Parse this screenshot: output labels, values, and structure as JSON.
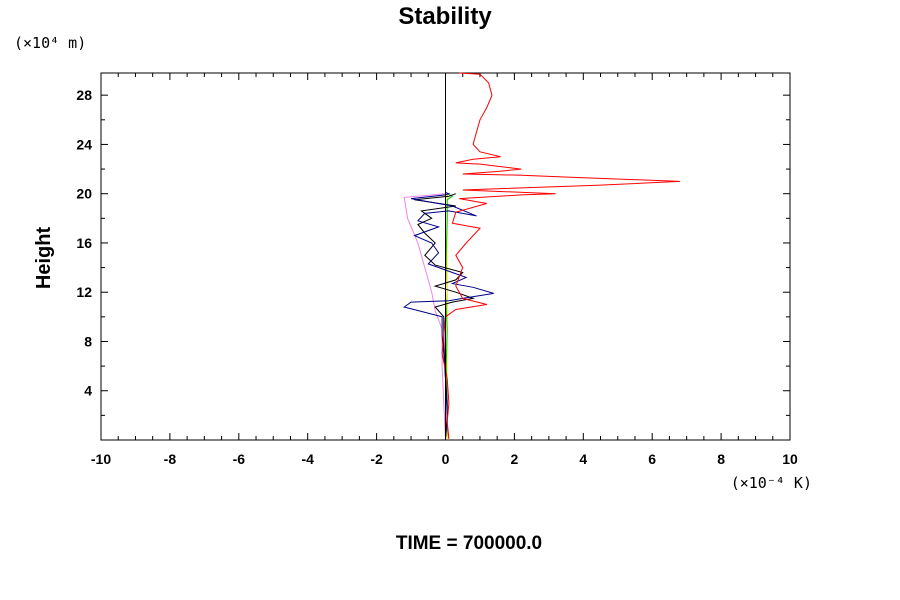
{
  "chart_data": {
    "type": "line",
    "title": "Stability",
    "xlabel": "",
    "ylabel": "Height",
    "x_unit": "(×10⁻⁴ K)",
    "y_unit": "(×10⁴ m)",
    "xlim": [
      -10,
      10
    ],
    "ylim": [
      0,
      29.8
    ],
    "x_ticks": [
      -10,
      -8,
      -6,
      -4,
      -2,
      0,
      2,
      4,
      6,
      8,
      10
    ],
    "x_tick_labels": [
      "-10",
      "-8",
      "-6",
      "-4",
      "-2",
      "0",
      "2",
      "4",
      "6",
      "8",
      "10"
    ],
    "y_ticks": [
      4,
      8,
      12,
      16,
      20,
      24,
      28
    ],
    "y_tick_labels": [
      "4",
      "8",
      "12",
      "16",
      "20",
      "24",
      "28"
    ],
    "grid": false,
    "legend": "none",
    "reference_line": {
      "x": 0,
      "color": "#000000"
    },
    "series": [
      {
        "color": "#ff0000",
        "points": [
          [
            0.1,
            0.1
          ],
          [
            0.05,
            1.5
          ],
          [
            0.1,
            3
          ],
          [
            0.05,
            5
          ],
          [
            -0.1,
            7
          ],
          [
            -0.05,
            8.5
          ],
          [
            0,
            10
          ],
          [
            0.3,
            10.6
          ],
          [
            1.2,
            11.0
          ],
          [
            0.5,
            11.5
          ],
          [
            0.3,
            12.5
          ],
          [
            0.5,
            14
          ],
          [
            0.3,
            15
          ],
          [
            0.6,
            16
          ],
          [
            1.0,
            17.2
          ],
          [
            0.2,
            17.6
          ],
          [
            0.3,
            18.5
          ],
          [
            1.2,
            19.2
          ],
          [
            0.4,
            19.6
          ],
          [
            2.2,
            19.9
          ],
          [
            3.2,
            20.0
          ],
          [
            0.5,
            20.3
          ],
          [
            1.5,
            20.4
          ],
          [
            4.5,
            20.7
          ],
          [
            6.8,
            21.0
          ],
          [
            4.0,
            21.3
          ],
          [
            2.2,
            21.5
          ],
          [
            0.5,
            21.6
          ],
          [
            1.5,
            21.8
          ],
          [
            2.2,
            22.0
          ],
          [
            1.0,
            22.4
          ],
          [
            0.3,
            22.5
          ],
          [
            0.8,
            22.8
          ],
          [
            1.6,
            23.0
          ],
          [
            1.0,
            23.4
          ],
          [
            0.8,
            24.0
          ],
          [
            0.9,
            25.0
          ],
          [
            1.0,
            26.0
          ],
          [
            1.2,
            27.0
          ],
          [
            1.35,
            28.0
          ],
          [
            1.25,
            29.0
          ],
          [
            1.0,
            29.7
          ],
          [
            0.4,
            29.8
          ]
        ]
      },
      {
        "color": "#00008b",
        "points": [
          [
            0,
            0.1
          ],
          [
            0.05,
            1.5
          ],
          [
            0.05,
            3
          ],
          [
            0,
            5
          ],
          [
            -0.05,
            7
          ],
          [
            -0.1,
            8.5
          ],
          [
            -0.1,
            10
          ],
          [
            -1.2,
            10.8
          ],
          [
            -1.0,
            11.2
          ],
          [
            0.1,
            11.3
          ],
          [
            0.5,
            11.5
          ],
          [
            1.4,
            11.9
          ],
          [
            0.8,
            12.4
          ],
          [
            0.2,
            12.7
          ],
          [
            0.6,
            13.2
          ],
          [
            0.2,
            13.6
          ],
          [
            -0.5,
            14.3
          ],
          [
            -0.2,
            15.2
          ],
          [
            -0.4,
            16.0
          ],
          [
            -0.9,
            16.6
          ],
          [
            -0.2,
            17.3
          ],
          [
            -0.8,
            17.8
          ],
          [
            -0.6,
            18.4
          ],
          [
            0.1,
            18.6
          ],
          [
            0.9,
            18.2
          ],
          [
            0.2,
            19.0
          ],
          [
            -0.6,
            19.4
          ],
          [
            -1.0,
            19.6
          ],
          [
            0,
            19.9
          ],
          [
            0.1,
            20.0
          ],
          [
            0,
            20.1
          ]
        ]
      },
      {
        "color": "#000000",
        "points": [
          [
            0,
            0.1
          ],
          [
            0.05,
            2
          ],
          [
            0,
            5
          ],
          [
            -0.05,
            8
          ],
          [
            -0.05,
            10
          ],
          [
            -0.3,
            10.8
          ],
          [
            0.2,
            11.2
          ],
          [
            0.8,
            11.5
          ],
          [
            0.3,
            12.0
          ],
          [
            -0.3,
            12.5
          ],
          [
            0.3,
            13.0
          ],
          [
            0.5,
            13.6
          ],
          [
            -0.3,
            14.2
          ],
          [
            -0.6,
            15.0
          ],
          [
            -0.3,
            16.0
          ],
          [
            -0.6,
            16.8
          ],
          [
            -0.8,
            17.5
          ],
          [
            -0.4,
            18.0
          ],
          [
            -0.7,
            18.6
          ],
          [
            0.3,
            19.0
          ],
          [
            -0.9,
            19.5
          ],
          [
            0.1,
            19.8
          ],
          [
            0.3,
            20.0
          ]
        ]
      },
      {
        "color": "#ee82ee",
        "points": [
          [
            0,
            0.1
          ],
          [
            -0.05,
            3
          ],
          [
            -0.1,
            6
          ],
          [
            -0.1,
            9
          ],
          [
            -0.3,
            10.5
          ],
          [
            -0.4,
            12
          ],
          [
            -0.6,
            14
          ],
          [
            -0.8,
            16
          ],
          [
            -1.1,
            18
          ],
          [
            -1.2,
            19.7
          ],
          [
            0,
            20.0
          ]
        ]
      },
      {
        "color": "#00cc00",
        "points": [
          [
            0.1,
            0.1
          ],
          [
            0.05,
            1
          ],
          [
            0.05,
            3
          ],
          [
            0.02,
            6
          ],
          [
            0.05,
            9
          ],
          [
            0,
            12
          ],
          [
            0.02,
            15
          ],
          [
            0.05,
            18
          ],
          [
            0.05,
            19.5
          ],
          [
            0.2,
            19.8
          ],
          [
            0.05,
            20.0
          ]
        ]
      },
      {
        "color": "#ffd700",
        "points": [
          [
            0.05,
            0.1
          ],
          [
            0.05,
            3
          ],
          [
            0.04,
            6
          ],
          [
            0.05,
            9
          ],
          [
            0.05,
            12
          ],
          [
            0.04,
            15
          ],
          [
            0.05,
            18
          ],
          [
            0.05,
            20.0
          ]
        ]
      }
    ],
    "footer": "TIME = 700000.0"
  }
}
